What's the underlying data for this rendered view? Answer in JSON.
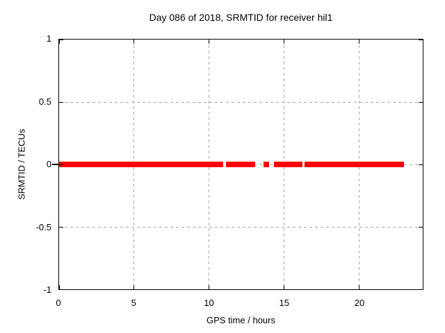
{
  "colors": {
    "background": "#ffffff",
    "border": "#000000",
    "text": "#000000",
    "grid": "#a6a6a6",
    "series": "#ff0000"
  },
  "chart_data": {
    "type": "scatter",
    "title": "Day 086 of 2018, SRMTID for receiver hil1",
    "xlabel": "GPS time / hours",
    "ylabel": "SRMTID / TECUs",
    "xlim": [
      0,
      24.25
    ],
    "ylim": [
      -1,
      1
    ],
    "xticks": [
      {
        "v": 0,
        "label": "0"
      },
      {
        "v": 5,
        "label": "5"
      },
      {
        "v": 10,
        "label": "10"
      },
      {
        "v": 15,
        "label": "15"
      },
      {
        "v": 20,
        "label": "20"
      }
    ],
    "yticks": [
      {
        "v": 1,
        "label": "1"
      },
      {
        "v": 0.5,
        "label": "0.5"
      },
      {
        "v": 0,
        "label": "0"
      },
      {
        "v": -0.5,
        "label": "-0.5"
      },
      {
        "v": -1,
        "label": "-1"
      }
    ],
    "grid": {
      "show": true,
      "style": "dashed",
      "x_values": [
        5,
        10,
        15,
        20
      ],
      "y_values": [
        0.5,
        0,
        -0.5
      ]
    },
    "zero_axis_outer_tick": true,
    "legend": null,
    "series": [
      {
        "name": "SRMTID",
        "style": "points",
        "marker": "filled-square",
        "color": "#ff0000",
        "y_value": 0,
        "x_segments": [
          [
            0,
            10.95
          ],
          [
            11.12,
            13.08
          ],
          [
            13.64,
            14.01
          ],
          [
            14.33,
            16.24
          ],
          [
            16.38,
            23.0
          ]
        ]
      }
    ]
  }
}
